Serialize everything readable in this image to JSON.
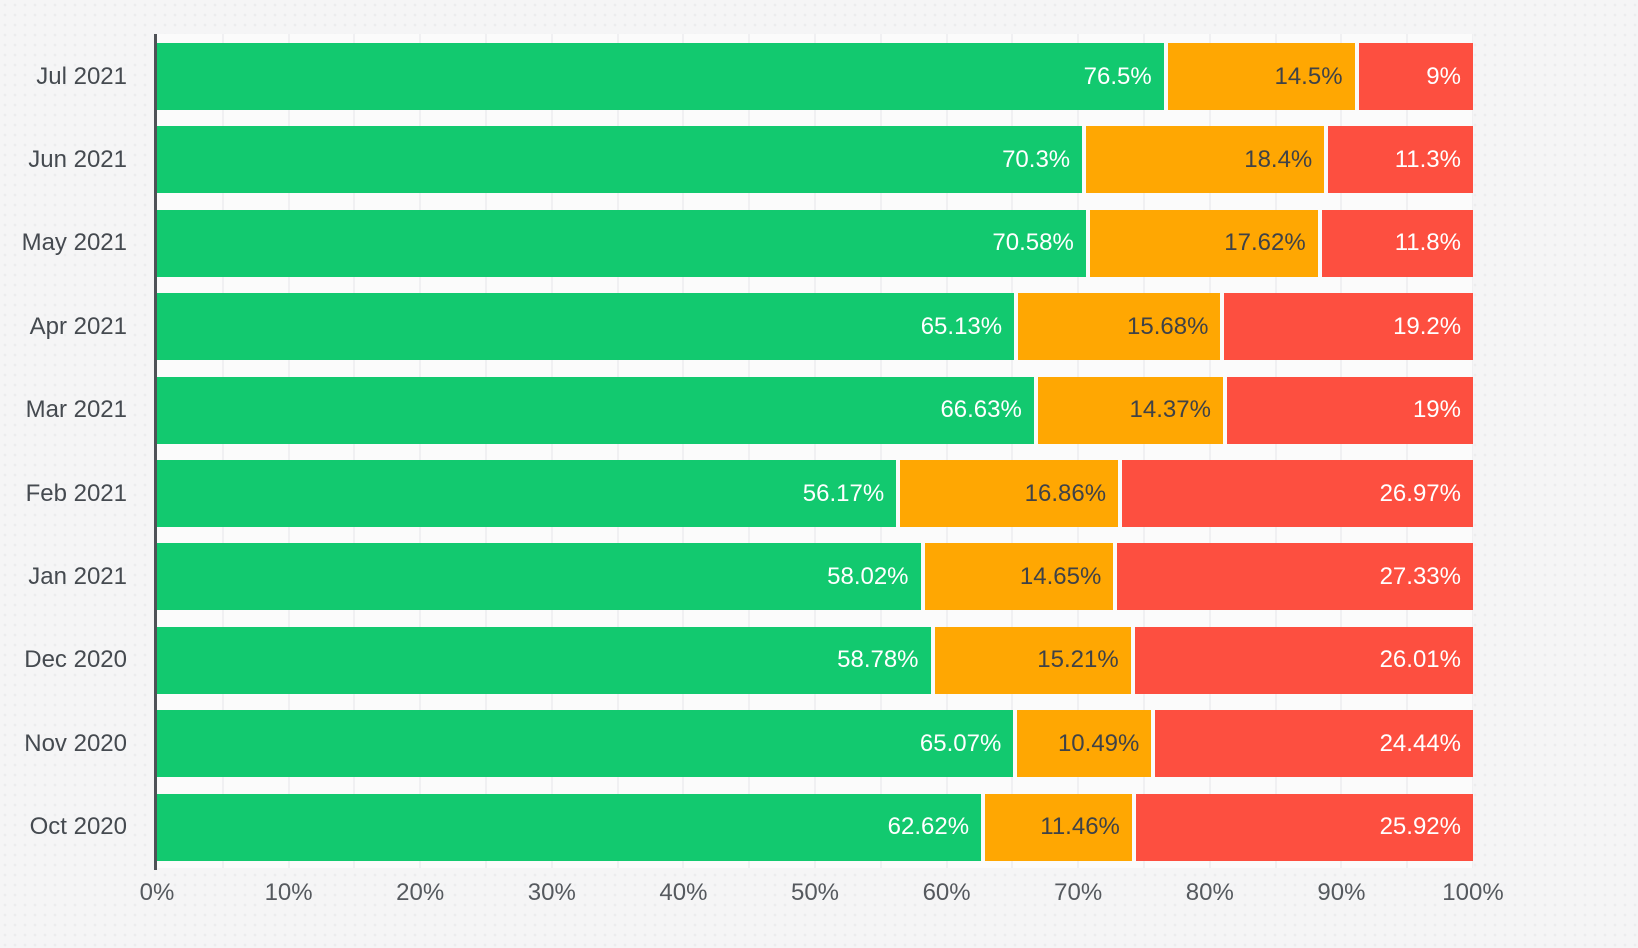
{
  "chart_data": {
    "type": "bar",
    "orientation": "horizontal",
    "stacked": true,
    "title": "",
    "xlabel": "",
    "ylabel": "",
    "xlim": [
      0,
      100
    ],
    "unit": "%",
    "legend": "none",
    "grid": {
      "minor_step_pct": 5,
      "major_step_pct": 10,
      "gridlines_on": true
    },
    "x_tick_labels": [
      "0%",
      "10%",
      "20%",
      "30%",
      "40%",
      "50%",
      "60%",
      "70%",
      "80%",
      "90%",
      "100%"
    ],
    "categories": [
      "Jul 2021",
      "Jun 2021",
      "May 2021",
      "Apr 2021",
      "Mar 2021",
      "Feb 2021",
      "Jan 2021",
      "Dec 2020",
      "Nov 2020",
      "Oct 2020"
    ],
    "series": [
      {
        "name": "green-segment",
        "color": "#12c96f",
        "label_color": "#ffffff",
        "values": [
          76.5,
          70.3,
          70.58,
          65.13,
          66.63,
          56.17,
          58.02,
          58.78,
          65.07,
          62.62
        ]
      },
      {
        "name": "orange-segment",
        "color": "#ffa702",
        "label_color": "#3f4247",
        "values": [
          14.5,
          18.4,
          17.62,
          15.68,
          14.37,
          16.86,
          14.65,
          15.21,
          10.49,
          11.46
        ]
      },
      {
        "name": "red-segment",
        "color": "#fd4f40",
        "label_color": "#ffffff",
        "values": [
          9,
          11.3,
          11.8,
          19.2,
          19,
          26.97,
          27.33,
          26.01,
          24.44,
          25.92
        ]
      }
    ],
    "segment_labels": [
      [
        "76.5%",
        "14.5%",
        "9%"
      ],
      [
        "70.3%",
        "18.4%",
        "11.3%"
      ],
      [
        "70.58%",
        "17.62%",
        "11.8%"
      ],
      [
        "65.13%",
        "15.68%",
        "19.2%"
      ],
      [
        "66.63%",
        "14.37%",
        "19%"
      ],
      [
        "56.17%",
        "16.86%",
        "26.97%"
      ],
      [
        "58.02%",
        "14.65%",
        "27.33%"
      ],
      [
        "58.78%",
        "15.21%",
        "26.01%"
      ],
      [
        "65.07%",
        "10.49%",
        "24.44%"
      ],
      [
        "62.62%",
        "11.46%",
        "25.92%"
      ]
    ],
    "style": {
      "page_background": "#f5f5f6",
      "plot_background": "#fbfbfb",
      "gridline_color": "#e5e5e8",
      "axis_color": "#4e5257",
      "y_label_color": "#454a50",
      "x_label_color": "#55595e"
    }
  }
}
